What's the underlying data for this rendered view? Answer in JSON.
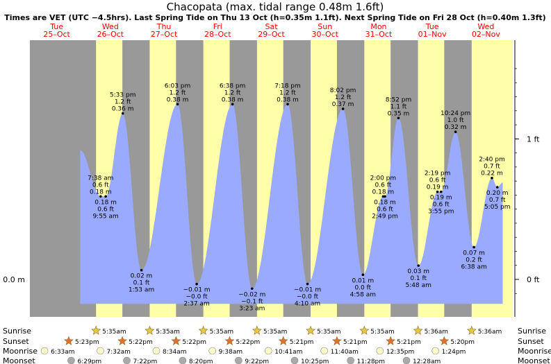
{
  "title": "Chacopata (max. tidal range 0.48m 1.6ft)",
  "subtitle": "Times are VET (UTC −4.5hrs). Last Spring Tide on Thu 13 Oct (h=0.35m 1.1ft). Next Spring Tide on Fri 28 Oct (h=0.40m 1.3ft)",
  "colors": {
    "night": "#999999",
    "day": "#ffffaa",
    "tide_fill": "#99aaff",
    "day_label": "#ff0000",
    "sunrise_star": "#e8c840",
    "sunset_star": "#e07030",
    "moonrise_dot": "#ffffcc",
    "moonset_dot": "#aaaaaa"
  },
  "chart_data": {
    "type": "area",
    "days": [
      {
        "dow": "Tue",
        "date": "25–Oct"
      },
      {
        "dow": "Wed",
        "date": "26–Oct"
      },
      {
        "dow": "Thu",
        "date": "27–Oct"
      },
      {
        "dow": "Fri",
        "date": "28–Oct"
      },
      {
        "dow": "Sat",
        "date": "29–Oct"
      },
      {
        "dow": "Sun",
        "date": "30–Oct"
      },
      {
        "dow": "Mon",
        "date": "31–Oct"
      },
      {
        "dow": "Tue",
        "date": "01–Nov"
      },
      {
        "dow": "Wed",
        "date": "02–Nov"
      }
    ],
    "x_start": "2022-10-25 00:00",
    "x_end": "2022-11-02 24:00",
    "ylim_m": [
      -0.05,
      0.48
    ],
    "y_axis_left": [
      {
        "value": 0,
        "label": "0.0 m"
      }
    ],
    "y_axis_right": [
      {
        "value": 0,
        "label": "0 ft"
      },
      {
        "value": 0.3048,
        "label": "1 ft"
      }
    ],
    "tides": [
      {
        "time": "2022-10-25 22:30",
        "h": 0.28,
        "lines": []
      },
      {
        "time": "2022-10-26 07:38",
        "h": 0.18,
        "lines": [
          "7:38 am",
          "0.6 ft",
          "0.18 m"
        ],
        "pos": "above"
      },
      {
        "time": "2022-10-26 09:55",
        "h": 0.18,
        "lines": [
          "0.18 m",
          "0.6 ft",
          "9:55 am"
        ],
        "pos": "below"
      },
      {
        "time": "2022-10-26 17:33",
        "h": 0.36,
        "lines": [
          "5:33 pm",
          "1.2 ft",
          "0.36 m"
        ],
        "pos": "above"
      },
      {
        "time": "2022-10-27 01:53",
        "h": 0.02,
        "lines": [
          "0.02 m",
          "0.1 ft",
          "1:53 am"
        ],
        "pos": "below"
      },
      {
        "time": "2022-10-27 18:03",
        "h": 0.38,
        "lines": [
          "6:03 pm",
          "1.2 ft",
          "0.38 m"
        ],
        "pos": "above"
      },
      {
        "time": "2022-10-28 02:37",
        "h": -0.01,
        "lines": [
          "−0.01 m",
          "−0.0 ft",
          "2:37 am"
        ],
        "pos": "below"
      },
      {
        "time": "2022-10-28 18:38",
        "h": 0.38,
        "lines": [
          "6:38 pm",
          "1.2 ft",
          "0.38 m"
        ],
        "pos": "above"
      },
      {
        "time": "2022-10-29 03:23",
        "h": -0.02,
        "lines": [
          "−0.02 m",
          "−0.1 ft",
          "3:23 am"
        ],
        "pos": "below"
      },
      {
        "time": "2022-10-29 19:18",
        "h": 0.38,
        "lines": [
          "7:18 pm",
          "1.2 ft",
          "0.38 m"
        ],
        "pos": "above"
      },
      {
        "time": "2022-10-30 04:10",
        "h": -0.01,
        "lines": [
          "−0.01 m",
          "−0.0 ft",
          "4:10 am"
        ],
        "pos": "below"
      },
      {
        "time": "2022-10-30 20:02",
        "h": 0.37,
        "lines": [
          "8:02 pm",
          "1.2 ft",
          "0.37 m"
        ],
        "pos": "above"
      },
      {
        "time": "2022-10-31 04:58",
        "h": 0.01,
        "lines": [
          "0.01 m",
          "0.0 ft",
          "4:58 am"
        ],
        "pos": "below"
      },
      {
        "time": "2022-10-31 14:00",
        "h": 0.18,
        "lines": [
          "2:00 pm",
          "0.6 ft",
          "0.18 m"
        ],
        "pos": "above"
      },
      {
        "time": "2022-10-31 14:49",
        "h": 0.18,
        "lines": [
          "0.18 m",
          "0.6 ft",
          "2:49 pm"
        ],
        "pos": "below"
      },
      {
        "time": "2022-10-31 20:52",
        "h": 0.35,
        "lines": [
          "8:52 pm",
          "1.1 ft",
          "0.35 m"
        ],
        "pos": "above"
      },
      {
        "time": "2022-11-01 05:48",
        "h": 0.03,
        "lines": [
          "0.03 m",
          "0.1 ft",
          "5:48 am"
        ],
        "pos": "below"
      },
      {
        "time": "2022-11-01 14:19",
        "h": 0.19,
        "lines": [
          "2:19 pm",
          "0.6 ft",
          "0.19 m"
        ],
        "pos": "above"
      },
      {
        "time": "2022-11-01 15:55",
        "h": 0.19,
        "lines": [
          "0.19 m",
          "0.6 ft",
          "3:55 pm"
        ],
        "pos": "below"
      },
      {
        "time": "2022-11-01 22:24",
        "h": 0.32,
        "lines": [
          "10:24 pm",
          "1.0 ft",
          "0.32 m"
        ],
        "pos": "above"
      },
      {
        "time": "2022-11-02 06:38",
        "h": 0.07,
        "lines": [
          "0.07 m",
          "0.2 ft",
          "6:38 am"
        ],
        "pos": "below"
      },
      {
        "time": "2022-11-02 14:40",
        "h": 0.22,
        "lines": [
          "2:40 pm",
          "0.7 ft",
          "0.22 m"
        ],
        "pos": "above"
      },
      {
        "time": "2022-11-02 17:05",
        "h": 0.2,
        "lines": [
          "0.20 m",
          "0.7 ft",
          "5:05 pm"
        ],
        "pos": "below"
      },
      {
        "time": "2022-11-02 19:30",
        "h": 0.21,
        "lines": []
      }
    ]
  },
  "astro": {
    "row_labels": {
      "sunrise": "Sunrise",
      "sunset": "Sunset",
      "moonrise": "Moonrise",
      "moonset": "Moonset"
    },
    "sunrise": [
      {
        "date": "2022-10-26",
        "time": "5:35am"
      },
      {
        "date": "2022-10-27",
        "time": "5:35am"
      },
      {
        "date": "2022-10-28",
        "time": "5:35am"
      },
      {
        "date": "2022-10-29",
        "time": "5:35am"
      },
      {
        "date": "2022-10-30",
        "time": "5:35am"
      },
      {
        "date": "2022-10-31",
        "time": "5:35am"
      },
      {
        "date": "2022-11-01",
        "time": "5:36am"
      },
      {
        "date": "2022-11-02",
        "time": "5:36am"
      }
    ],
    "sunset": [
      {
        "date": "2022-10-25",
        "time": "5:23pm"
      },
      {
        "date": "2022-10-26",
        "time": "5:22pm"
      },
      {
        "date": "2022-10-27",
        "time": "5:22pm"
      },
      {
        "date": "2022-10-28",
        "time": "5:22pm"
      },
      {
        "date": "2022-10-29",
        "time": "5:21pm"
      },
      {
        "date": "2022-10-30",
        "time": "5:21pm"
      },
      {
        "date": "2022-10-31",
        "time": "5:21pm"
      },
      {
        "date": "2022-11-01",
        "time": "5:20pm"
      }
    ],
    "moonrise": [
      {
        "date": "2022-10-25",
        "time": "6:33am"
      },
      {
        "date": "2022-10-26",
        "time": "7:32am"
      },
      {
        "date": "2022-10-27",
        "time": "8:34am"
      },
      {
        "date": "2022-10-28",
        "time": "9:38am"
      },
      {
        "date": "2022-10-29",
        "time": "10:41am"
      },
      {
        "date": "2022-10-30",
        "time": "11:40am"
      },
      {
        "date": "2022-10-31",
        "time": "12:35pm"
      },
      {
        "date": "2022-11-01",
        "time": "1:24pm"
      }
    ],
    "moonset": [
      {
        "date": "2022-10-25",
        "time": "6:29pm"
      },
      {
        "date": "2022-10-26",
        "time": "7:22pm"
      },
      {
        "date": "2022-10-27",
        "time": "8:20pm"
      },
      {
        "date": "2022-10-28",
        "time": "9:22pm"
      },
      {
        "date": "2022-10-29",
        "time": "10:25pm"
      },
      {
        "date": "2022-10-30",
        "time": "11:28pm"
      },
      {
        "date": "2022-11-01",
        "time": "12:28am"
      }
    ]
  }
}
